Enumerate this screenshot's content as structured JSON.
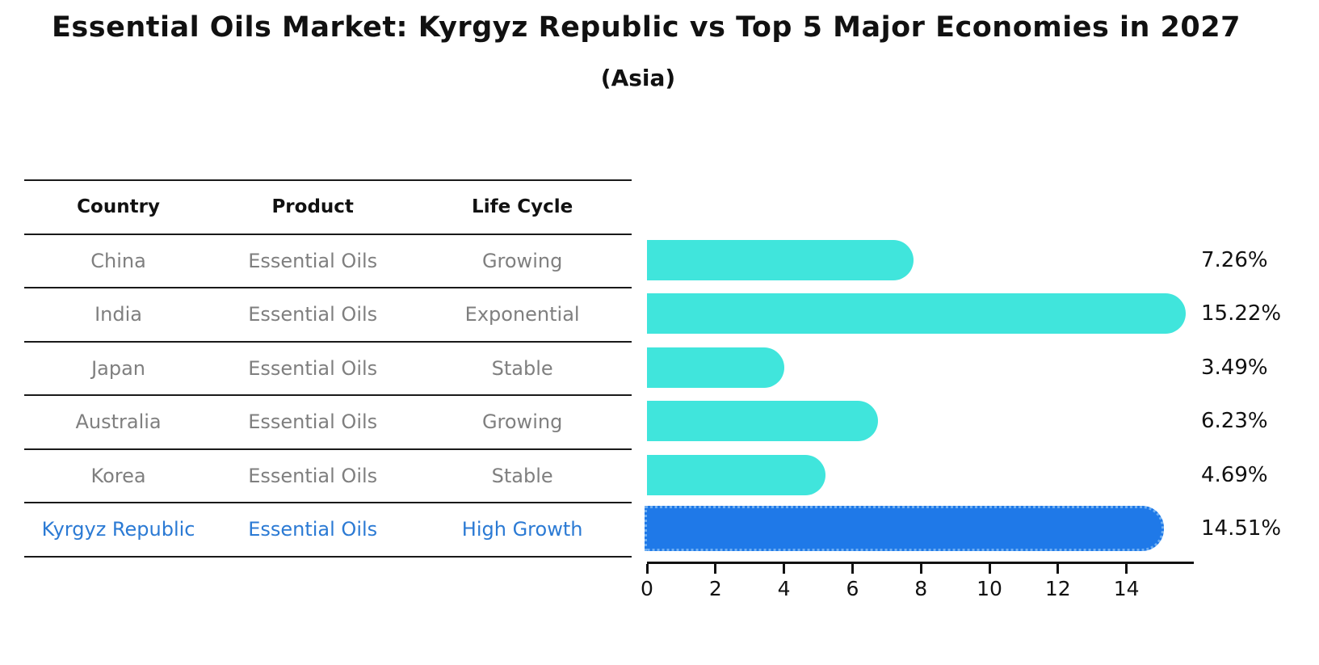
{
  "title": "Essential Oils Market: Kyrgyz Republic vs Top 5 Major Economies in 2027",
  "subtitle": "(Asia)",
  "table": {
    "columns": [
      "Country",
      "Product",
      "Life Cycle"
    ],
    "rows": [
      {
        "country": "China",
        "product": "Essential Oils",
        "life_cycle": "Growing",
        "share": "7.26%",
        "highlight": false
      },
      {
        "country": "India",
        "product": "Essential Oils",
        "life_cycle": "Exponential",
        "share": "15.22%",
        "highlight": false
      },
      {
        "country": "Japan",
        "product": "Essential Oils",
        "life_cycle": "Stable",
        "share": "3.49%",
        "highlight": false
      },
      {
        "country": "Australia",
        "product": "Essential Oils",
        "life_cycle": "Growing",
        "share": "6.23%",
        "highlight": false
      },
      {
        "country": "Korea",
        "product": "Essential Oils",
        "life_cycle": "Stable",
        "share": "4.69%",
        "highlight": false
      },
      {
        "country": "Kyrgyz Republic",
        "product": "Essential Oils",
        "life_cycle": "High Growth",
        "share": "14.51%",
        "highlight": true
      }
    ]
  },
  "chart_data": {
    "type": "bar",
    "orientation": "horizontal",
    "title": "Essential Oils Market: Kyrgyz Republic vs Top 5 Major Economies in 2027 (Asia)",
    "categories": [
      "China",
      "India",
      "Japan",
      "Australia",
      "Korea",
      "Kyrgyz Republic"
    ],
    "values": [
      7.26,
      15.22,
      3.49,
      6.23,
      4.69,
      14.51
    ],
    "value_labels": [
      "7.26%",
      "15.22%",
      "3.49%",
      "6.23%",
      "4.69%",
      "14.51%"
    ],
    "xlabel": "",
    "ylabel": "",
    "xlim": [
      0,
      16
    ],
    "xticks": [
      0,
      2,
      4,
      6,
      8,
      10,
      12,
      14
    ],
    "grid": false,
    "legend": "none",
    "bar_color": "#40E5DC",
    "highlight_index": 5,
    "highlight_color": "#1F79E8",
    "highlight_edge_color": "#6FAFF2",
    "axis_color": "#111111",
    "default_text_color": "#7f7f7f",
    "highlight_text_color": "#2b7ad4"
  }
}
